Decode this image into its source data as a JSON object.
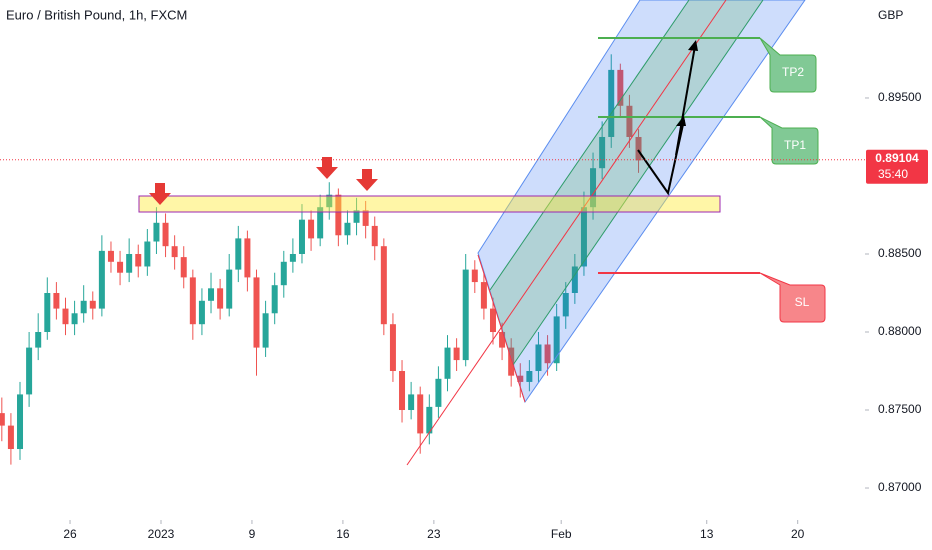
{
  "chart_data": {
    "type": "candlestick",
    "title": "Euro / British Pound, 1h, FXCM",
    "currency": "GBP",
    "x": [
      -3.75,
      -3.25,
      -2.75,
      -2.25,
      -1.75,
      -1.25,
      -0.75,
      -0.25,
      0.25,
      0.75,
      1.25,
      1.75,
      2.25,
      2.75,
      3.25,
      3.75,
      4.25,
      4.75,
      5.25,
      5.75,
      6.25,
      6.75,
      7.25,
      7.75,
      8.25,
      8.75,
      9.25,
      9.75,
      10.25,
      10.75,
      11.25,
      11.75,
      12.25,
      12.75,
      13.25,
      13.75,
      14.25,
      14.75,
      15.25,
      15.75,
      16.25,
      16.75,
      17.25,
      17.75,
      18.25,
      18.75,
      19.25,
      19.75,
      20.25,
      20.75,
      21.25,
      21.75,
      22.25,
      22.75,
      23.25,
      23.75,
      24.25,
      24.75,
      25.25,
      25.75,
      26.25,
      26.75,
      27.25,
      27.75,
      28.25,
      28.75,
      29.25,
      29.75,
      30.25,
      30.75,
      31.25
    ],
    "open": [
      0.8748,
      0.874,
      0.8725,
      0.876,
      0.879,
      0.88,
      0.8825,
      0.8815,
      0.8805,
      0.8812,
      0.882,
      0.8815,
      0.8852,
      0.8845,
      0.8838,
      0.885,
      0.8842,
      0.8858,
      0.887,
      0.8855,
      0.8848,
      0.8835,
      0.8805,
      0.882,
      0.8828,
      0.8815,
      0.884,
      0.886,
      0.8835,
      0.879,
      0.8812,
      0.883,
      0.8845,
      0.885,
      0.8872,
      0.886,
      0.888,
      0.8888,
      0.8862,
      0.887,
      0.8878,
      0.8868,
      0.8855,
      0.8805,
      0.8775,
      0.875,
      0.876,
      0.8735,
      0.8752,
      0.877,
      0.879,
      0.8782,
      0.884,
      0.8832,
      0.8815,
      0.88,
      0.879,
      0.8772,
      0.8768,
      0.8775,
      0.8792,
      0.878,
      0.881,
      0.8825,
      0.8842,
      0.888,
      0.8905,
      0.8925,
      0.8968,
      0.8945,
      0.8925
    ],
    "high": [
      0.8758,
      0.8748,
      0.8768,
      0.88,
      0.8812,
      0.8835,
      0.8832,
      0.8822,
      0.882,
      0.883,
      0.8826,
      0.8862,
      0.8858,
      0.8852,
      0.886,
      0.8856,
      0.8866,
      0.888,
      0.8876,
      0.8862,
      0.8855,
      0.884,
      0.8828,
      0.8838,
      0.8834,
      0.885,
      0.8868,
      0.8865,
      0.884,
      0.882,
      0.8838,
      0.8852,
      0.886,
      0.8882,
      0.8878,
      0.8888,
      0.8896,
      0.8892,
      0.8878,
      0.8886,
      0.8884,
      0.8874,
      0.886,
      0.8812,
      0.8782,
      0.8768,
      0.8765,
      0.876,
      0.8778,
      0.8798,
      0.8796,
      0.885,
      0.8846,
      0.8838,
      0.8822,
      0.8806,
      0.8796,
      0.878,
      0.8782,
      0.88,
      0.8798,
      0.8818,
      0.8832,
      0.885,
      0.889,
      0.8915,
      0.8935,
      0.8978,
      0.8972,
      0.8952,
      0.893
    ],
    "low": [
      0.873,
      0.8715,
      0.8718,
      0.8752,
      0.8782,
      0.8795,
      0.8808,
      0.8798,
      0.8798,
      0.8806,
      0.8808,
      0.881,
      0.8838,
      0.883,
      0.8832,
      0.8835,
      0.8836,
      0.885,
      0.8848,
      0.884,
      0.8828,
      0.8795,
      0.8798,
      0.8812,
      0.8808,
      0.881,
      0.8832,
      0.8826,
      0.8772,
      0.8784,
      0.8805,
      0.8822,
      0.8838,
      0.8844,
      0.8852,
      0.8855,
      0.8872,
      0.8855,
      0.8856,
      0.8862,
      0.886,
      0.8846,
      0.8798,
      0.8768,
      0.8742,
      0.8744,
      0.8722,
      0.8728,
      0.8745,
      0.8762,
      0.8775,
      0.8778,
      0.8825,
      0.8808,
      0.8792,
      0.8782,
      0.8765,
      0.8758,
      0.8762,
      0.8768,
      0.8772,
      0.8775,
      0.8802,
      0.8818,
      0.8836,
      0.8872,
      0.8898,
      0.8918,
      0.8938,
      0.8918,
      0.8902
    ],
    "close": [
      0.874,
      0.8725,
      0.876,
      0.879,
      0.88,
      0.8825,
      0.8815,
      0.8805,
      0.8812,
      0.882,
      0.8815,
      0.8852,
      0.8845,
      0.8838,
      0.885,
      0.8842,
      0.8858,
      0.887,
      0.8855,
      0.8848,
      0.8835,
      0.8805,
      0.882,
      0.8828,
      0.8815,
      0.884,
      0.886,
      0.8835,
      0.879,
      0.8812,
      0.883,
      0.8845,
      0.885,
      0.8872,
      0.886,
      0.888,
      0.8888,
      0.8862,
      0.887,
      0.8878,
      0.8868,
      0.8855,
      0.8805,
      0.8775,
      0.875,
      0.876,
      0.8735,
      0.8752,
      0.877,
      0.879,
      0.8782,
      0.884,
      0.8832,
      0.8815,
      0.88,
      0.879,
      0.8772,
      0.8768,
      0.8775,
      0.8792,
      0.878,
      0.881,
      0.8825,
      0.8842,
      0.888,
      0.8905,
      0.8925,
      0.8968,
      0.8945,
      0.8925,
      0.891
    ],
    "up_color": "#26a69a",
    "down_color": "#ef5350",
    "xlim": [
      -3.85,
      43.7
    ],
    "xticks": [
      {
        "value": 0,
        "label": "26"
      },
      {
        "value": 5,
        "label": "2023"
      },
      {
        "value": 10,
        "label": "9"
      },
      {
        "value": 15,
        "label": "16"
      },
      {
        "value": 20,
        "label": "23"
      },
      {
        "value": 27,
        "label": "Feb"
      },
      {
        "value": 35,
        "label": "13"
      },
      {
        "value": 40,
        "label": "20"
      }
    ],
    "ylim": [
      0.86795,
      0.90128
    ],
    "yticks": [
      {
        "value": 0.87,
        "label": "0.87000"
      },
      {
        "value": 0.875,
        "label": "0.87500"
      },
      {
        "value": 0.88,
        "label": "0.88000"
      },
      {
        "value": 0.885,
        "label": "0.88500"
      },
      {
        "value": 0.895,
        "label": "0.89500"
      }
    ],
    "last_price": 0.89104,
    "countdown": "35:40",
    "annotations": [
      "TP2",
      "TP1",
      "SL"
    ]
  }
}
